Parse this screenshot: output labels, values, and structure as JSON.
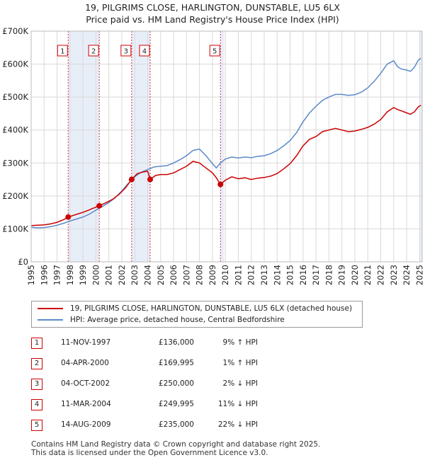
{
  "chart_data": {
    "type": "line",
    "title": "19, PILGRIMS CLOSE, HARLINGTON, DUNSTABLE, LU5 6LX",
    "subtitle": "Price paid vs. HM Land Registry's House Price Index (HPI)",
    "xlabel": "",
    "ylabel": "",
    "xlim": [
      1995,
      2025.2
    ],
    "ylim": [
      0,
      700000
    ],
    "x_ticks": [
      "1995",
      "1996",
      "1997",
      "1998",
      "1999",
      "2000",
      "2001",
      "2002",
      "2003",
      "2004",
      "2005",
      "2006",
      "2007",
      "2008",
      "2009",
      "2010",
      "2011",
      "2012",
      "2013",
      "2014",
      "2015",
      "2016",
      "2017",
      "2018",
      "2019",
      "2020",
      "2021",
      "2022",
      "2023",
      "2024",
      "2025"
    ],
    "y_ticks": [
      {
        "value": 0,
        "label": "£0"
      },
      {
        "value": 100000,
        "label": "£100K"
      },
      {
        "value": 200000,
        "label": "£200K"
      },
      {
        "value": 300000,
        "label": "£300K"
      },
      {
        "value": 400000,
        "label": "£400K"
      },
      {
        "value": 500000,
        "label": "£500K"
      },
      {
        "value": 600000,
        "label": "£600K"
      },
      {
        "value": 700000,
        "label": "£700K"
      }
    ],
    "grid": true,
    "colors": {
      "property": "#cc0000",
      "hpi": "#5b8ac8",
      "shade": "#e8eef8",
      "marker_border": "#cc0000",
      "grid": "#d9d9d9"
    },
    "series": [
      {
        "name": "19, PILGRIMS CLOSE, HARLINGTON, DUNSTABLE, LU5 6LX (detached house)",
        "color": "#cc0000",
        "points": [
          [
            1995.0,
            110000
          ],
          [
            1995.5,
            111000
          ],
          [
            1996.0,
            112000
          ],
          [
            1996.5,
            115000
          ],
          [
            1997.0,
            120000
          ],
          [
            1997.5,
            128000
          ],
          [
            1997.86,
            136000
          ],
          [
            1998.5,
            144000
          ],
          [
            1999.0,
            150000
          ],
          [
            1999.5,
            158000
          ],
          [
            2000.26,
            169995
          ],
          [
            2000.8,
            180000
          ],
          [
            2001.3,
            190000
          ],
          [
            2001.8,
            205000
          ],
          [
            2002.3,
            225000
          ],
          [
            2002.76,
            250000
          ],
          [
            2003.2,
            268000
          ],
          [
            2003.6,
            272000
          ],
          [
            2004.0,
            275000
          ],
          [
            2004.19,
            249995
          ],
          [
            2004.6,
            262000
          ],
          [
            2005.0,
            265000
          ],
          [
            2005.5,
            265000
          ],
          [
            2006.0,
            270000
          ],
          [
            2006.5,
            280000
          ],
          [
            2007.0,
            290000
          ],
          [
            2007.5,
            305000
          ],
          [
            2008.0,
            300000
          ],
          [
            2008.5,
            285000
          ],
          [
            2009.0,
            270000
          ],
          [
            2009.3,
            255000
          ],
          [
            2009.62,
            235000
          ],
          [
            2010.0,
            248000
          ],
          [
            2010.5,
            258000
          ],
          [
            2011.0,
            252000
          ],
          [
            2011.5,
            255000
          ],
          [
            2012.0,
            250000
          ],
          [
            2012.5,
            254000
          ],
          [
            2013.0,
            256000
          ],
          [
            2013.5,
            260000
          ],
          [
            2014.0,
            268000
          ],
          [
            2014.5,
            282000
          ],
          [
            2015.0,
            298000
          ],
          [
            2015.5,
            322000
          ],
          [
            2016.0,
            352000
          ],
          [
            2016.5,
            372000
          ],
          [
            2017.0,
            380000
          ],
          [
            2017.5,
            395000
          ],
          [
            2018.0,
            400000
          ],
          [
            2018.5,
            405000
          ],
          [
            2019.0,
            400000
          ],
          [
            2019.5,
            395000
          ],
          [
            2020.0,
            397000
          ],
          [
            2020.5,
            402000
          ],
          [
            2021.0,
            408000
          ],
          [
            2021.5,
            418000
          ],
          [
            2022.0,
            432000
          ],
          [
            2022.5,
            455000
          ],
          [
            2023.0,
            468000
          ],
          [
            2023.3,
            462000
          ],
          [
            2023.6,
            458000
          ],
          [
            2024.0,
            452000
          ],
          [
            2024.3,
            448000
          ],
          [
            2024.6,
            455000
          ],
          [
            2024.9,
            470000
          ],
          [
            2025.1,
            475000
          ]
        ]
      },
      {
        "name": "HPI: Average price, detached house, Central Bedfordshire",
        "color": "#5b8ac8",
        "points": [
          [
            1995.0,
            105000
          ],
          [
            1995.5,
            103000
          ],
          [
            1996.0,
            104000
          ],
          [
            1996.5,
            107000
          ],
          [
            1997.0,
            111000
          ],
          [
            1997.5,
            117000
          ],
          [
            1998.0,
            124000
          ],
          [
            1998.5,
            130000
          ],
          [
            1999.0,
            136000
          ],
          [
            1999.5,
            145000
          ],
          [
            2000.0,
            157000
          ],
          [
            2000.5,
            168000
          ],
          [
            2001.0,
            180000
          ],
          [
            2001.5,
            195000
          ],
          [
            2002.0,
            215000
          ],
          [
            2002.5,
            238000
          ],
          [
            2003.0,
            258000
          ],
          [
            2003.5,
            272000
          ],
          [
            2004.0,
            280000
          ],
          [
            2004.5,
            288000
          ],
          [
            2005.0,
            290000
          ],
          [
            2005.5,
            292000
          ],
          [
            2006.0,
            300000
          ],
          [
            2006.5,
            310000
          ],
          [
            2007.0,
            322000
          ],
          [
            2007.5,
            338000
          ],
          [
            2008.0,
            342000
          ],
          [
            2008.5,
            322000
          ],
          [
            2009.0,
            298000
          ],
          [
            2009.3,
            285000
          ],
          [
            2009.62,
            300000
          ],
          [
            2010.0,
            312000
          ],
          [
            2010.5,
            318000
          ],
          [
            2011.0,
            315000
          ],
          [
            2011.5,
            318000
          ],
          [
            2012.0,
            316000
          ],
          [
            2012.5,
            320000
          ],
          [
            2013.0,
            322000
          ],
          [
            2013.5,
            328000
          ],
          [
            2014.0,
            338000
          ],
          [
            2014.5,
            352000
          ],
          [
            2015.0,
            368000
          ],
          [
            2015.5,
            392000
          ],
          [
            2016.0,
            425000
          ],
          [
            2016.5,
            452000
          ],
          [
            2017.0,
            472000
          ],
          [
            2017.5,
            490000
          ],
          [
            2018.0,
            500000
          ],
          [
            2018.5,
            508000
          ],
          [
            2019.0,
            508000
          ],
          [
            2019.5,
            505000
          ],
          [
            2020.0,
            507000
          ],
          [
            2020.5,
            515000
          ],
          [
            2021.0,
            528000
          ],
          [
            2021.5,
            548000
          ],
          [
            2022.0,
            572000
          ],
          [
            2022.5,
            600000
          ],
          [
            2023.0,
            610000
          ],
          [
            2023.3,
            592000
          ],
          [
            2023.6,
            585000
          ],
          [
            2024.0,
            582000
          ],
          [
            2024.3,
            578000
          ],
          [
            2024.6,
            590000
          ],
          [
            2024.9,
            612000
          ],
          [
            2025.1,
            618000
          ]
        ]
      }
    ],
    "sales": [
      {
        "label": "1",
        "x": 1997.86,
        "y": 136000
      },
      {
        "label": "2",
        "x": 2000.26,
        "y": 169995
      },
      {
        "label": "3",
        "x": 2002.76,
        "y": 250000
      },
      {
        "label": "4",
        "x": 2004.19,
        "y": 249995
      },
      {
        "label": "5",
        "x": 2009.62,
        "y": 235000
      }
    ],
    "shaded_ranges": [
      [
        1997.86,
        2000.26
      ],
      [
        2002.76,
        2004.19
      ],
      [
        2009.62,
        2009.9
      ],
      [
        2025.0,
        2025.2
      ]
    ]
  },
  "legend": {
    "property_label": "19, PILGRIMS CLOSE, HARLINGTON, DUNSTABLE, LU5 6LX (detached house)",
    "hpi_label": "HPI: Average price, detached house, Central Bedfordshire"
  },
  "transactions": [
    {
      "num": "1",
      "date": "11-NOV-1997",
      "price": "£136,000",
      "hpi": "9% ↑ HPI"
    },
    {
      "num": "2",
      "date": "04-APR-2000",
      "price": "£169,995",
      "hpi": "1% ↑ HPI"
    },
    {
      "num": "3",
      "date": "04-OCT-2002",
      "price": "£250,000",
      "hpi": "2% ↓ HPI"
    },
    {
      "num": "4",
      "date": "11-MAR-2004",
      "price": "£249,995",
      "hpi": "11% ↓ HPI"
    },
    {
      "num": "5",
      "date": "14-AUG-2009",
      "price": "£235,000",
      "hpi": "22% ↓ HPI"
    }
  ],
  "footer": {
    "line1": "Contains HM Land Registry data © Crown copyright and database right 2025.",
    "line2": "This data is licensed under the Open Government Licence v3.0."
  }
}
